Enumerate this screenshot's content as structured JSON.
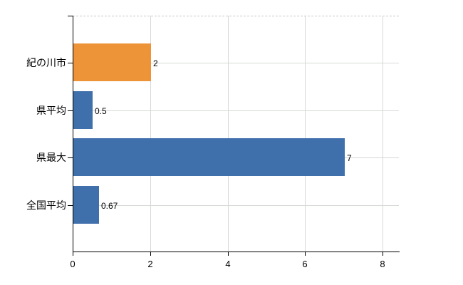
{
  "chart_data": {
    "type": "bar",
    "orientation": "horizontal",
    "title": "",
    "xlabel": "",
    "ylabel": "",
    "categories": [
      "紀の川市",
      "県平均",
      "県最大",
      "全国平均"
    ],
    "values": [
      2,
      0.5,
      7,
      0.67
    ],
    "value_labels": [
      "2",
      "0.5",
      "7",
      "0.67"
    ],
    "bar_colors": [
      "#ee9438",
      "#4070ac",
      "#4070ac",
      "#4070ac"
    ],
    "x_ticks": [
      0,
      2,
      4,
      6,
      8
    ],
    "x_tick_labels": [
      "0",
      "2",
      "4",
      "6",
      "8"
    ],
    "xlim": [
      0,
      8.42
    ],
    "grid": true,
    "legend_position": "none",
    "colors": {
      "bar_orange": "#ee9438",
      "bar_blue": "#4070ac",
      "gridline": "#d7d7d7",
      "axis": "#000000",
      "text": "#000000",
      "background": "#ffffff"
    }
  }
}
